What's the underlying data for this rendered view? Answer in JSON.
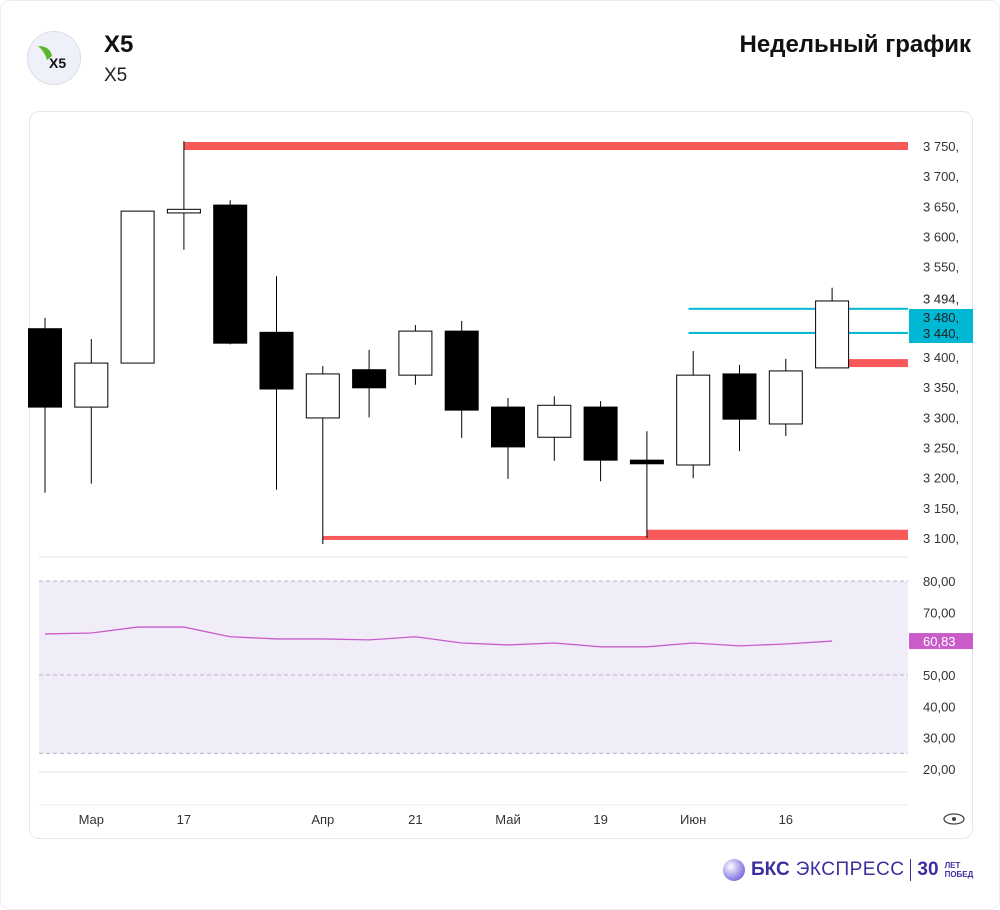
{
  "header": {
    "title": "X5",
    "subtitle": "X5",
    "period": "Недельный график",
    "logo_text": "X5"
  },
  "footer": {
    "brand_bold": "БКС",
    "brand_light": "ЭКСПРЕСС",
    "anniv_num": "30",
    "anniv_line1": "ЛЕТ",
    "anniv_line2": "ПОБЕД"
  },
  "colors": {
    "up": "#ffffff",
    "down": "#000000",
    "level_red": "#f85a5a",
    "level_cyan": "#00b8d4",
    "rsi": "#c95cc9",
    "rsi_band": "#f1edf8"
  },
  "chart_data": [
    {
      "type": "candlestick",
      "title": "X5 weekly",
      "ylim": [
        3075,
        3790
      ],
      "y_ticks": [
        "3 750,",
        "3 700,",
        "3 650,",
        "3 600,",
        "3 550,",
        "3 400,",
        "3 350,",
        "3 300,",
        "3 250,",
        "3 200,",
        "3 150,",
        "3 100,"
      ],
      "y_tick_values": [
        3750,
        3700,
        3650,
        3600,
        3550,
        3400,
        3350,
        3300,
        3250,
        3200,
        3150,
        3100
      ],
      "x_labels": [
        {
          "i": 1,
          "label": "Мар"
        },
        {
          "i": 3,
          "label": "17"
        },
        {
          "i": 6,
          "label": "Апр"
        },
        {
          "i": 8,
          "label": "21"
        },
        {
          "i": 10,
          "label": "Май"
        },
        {
          "i": 12,
          "label": "19"
        },
        {
          "i": 14,
          "label": "Июн"
        },
        {
          "i": 16,
          "label": "16"
        }
      ],
      "candles": [
        {
          "o": 3447,
          "h": 3465,
          "l": 3175,
          "c": 3317
        },
        {
          "o": 3317,
          "h": 3430,
          "l": 3190,
          "c": 3390
        },
        {
          "o": 3390,
          "h": 3642,
          "l": 3390,
          "c": 3642
        },
        {
          "o": 3639,
          "h": 3758,
          "l": 3578,
          "c": 3645
        },
        {
          "o": 3652,
          "h": 3660,
          "l": 3421,
          "c": 3423
        },
        {
          "o": 3441,
          "h": 3534,
          "l": 3180,
          "c": 3347
        },
        {
          "o": 3299,
          "h": 3385,
          "l": 3090,
          "c": 3372
        },
        {
          "o": 3379,
          "h": 3412,
          "l": 3300,
          "c": 3349
        },
        {
          "o": 3370,
          "h": 3453,
          "l": 3354,
          "c": 3443
        },
        {
          "o": 3443,
          "h": 3460,
          "l": 3266,
          "c": 3312
        },
        {
          "o": 3317,
          "h": 3332,
          "l": 3198,
          "c": 3251
        },
        {
          "o": 3267,
          "h": 3335,
          "l": 3228,
          "c": 3320
        },
        {
          "o": 3317,
          "h": 3327,
          "l": 3194,
          "c": 3229
        },
        {
          "o": 3229,
          "h": 3277,
          "l": 3100,
          "c": 3223
        },
        {
          "o": 3221,
          "h": 3410,
          "l": 3199,
          "c": 3370
        },
        {
          "o": 3372,
          "h": 3387,
          "l": 3244,
          "c": 3297
        },
        {
          "o": 3289,
          "h": 3397,
          "l": 3269,
          "c": 3377
        },
        {
          "o": 3382,
          "h": 3515,
          "l": 3382,
          "c": 3493
        }
      ],
      "levels": [
        {
          "price": 3750,
          "from": 3,
          "color": "red",
          "thick": true
        },
        {
          "price": 3100,
          "from": 6,
          "color": "red",
          "thick": false
        },
        {
          "price": 3107,
          "from": 13,
          "color": "red",
          "thick": true
        },
        {
          "price": 3390,
          "from": 17,
          "color": "red",
          "thick": true
        },
        {
          "price": 3480,
          "from": 13.9,
          "color": "cyan",
          "thick": false
        },
        {
          "price": 3440,
          "from": 13.9,
          "color": "cyan",
          "thick": false
        }
      ],
      "price_labels": [
        {
          "price": 3494,
          "label": "3 494,",
          "highlight": false
        },
        {
          "price": 3480,
          "label": "3 480,",
          "highlight": true
        },
        {
          "price": 3440,
          "label": "3 440,",
          "highlight": true
        }
      ]
    },
    {
      "type": "line",
      "title": "RSI",
      "ylim": [
        20,
        80
      ],
      "y_ticks": [
        "80,00",
        "70,00",
        "50,00",
        "40,00",
        "30,00",
        "20,00"
      ],
      "y_tick_values": [
        80,
        70,
        50,
        40,
        30,
        20
      ],
      "bands": [
        80,
        50,
        25
      ],
      "values": [
        63.1,
        63.4,
        65.3,
        65.3,
        62.2,
        61.5,
        61.5,
        61.2,
        62.2,
        60.2,
        59.6,
        60.2,
        59.0,
        59.0,
        60.2,
        59.3,
        59.9,
        60.83
      ],
      "last_label": "60,83"
    }
  ]
}
